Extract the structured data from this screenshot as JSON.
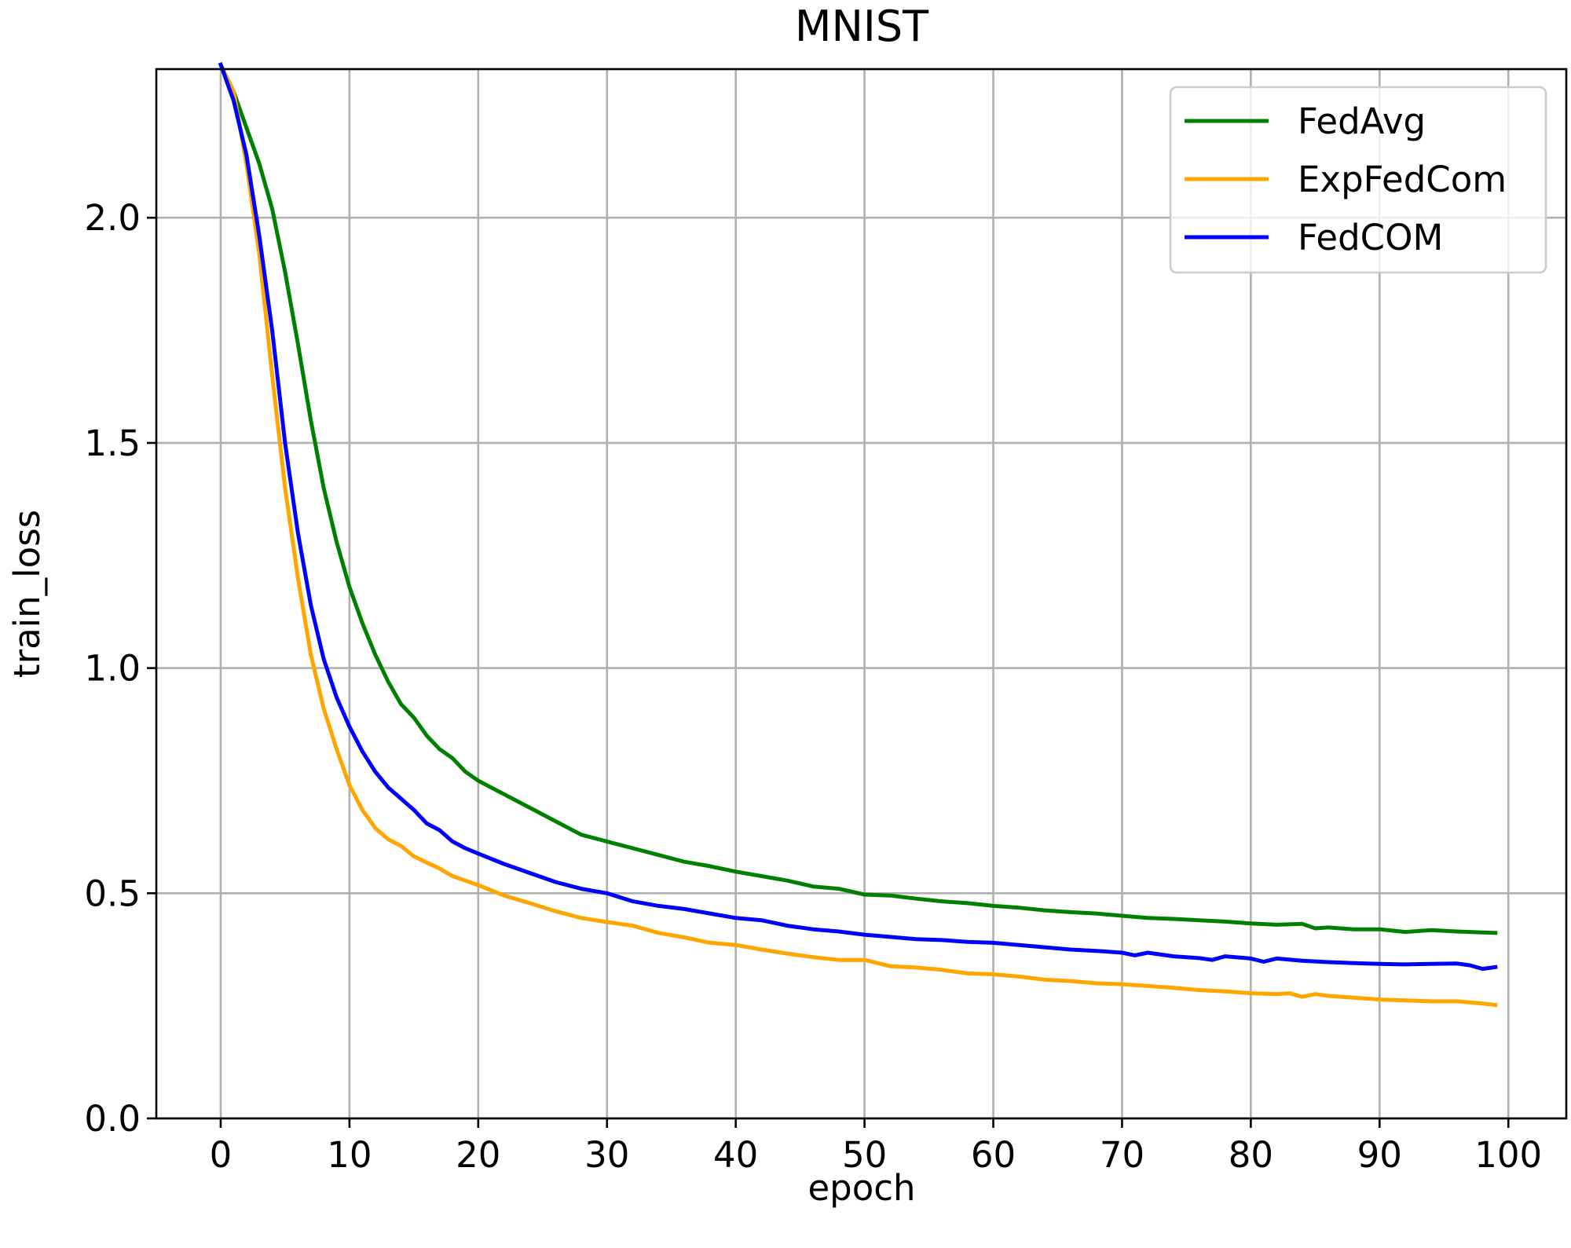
{
  "chart_data": {
    "type": "line",
    "title": "MNIST",
    "xlabel": "epoch",
    "ylabel": "train_loss",
    "xlim": [
      -5,
      104.5
    ],
    "ylim": [
      0,
      2.33
    ],
    "xticks": [
      0,
      10,
      20,
      30,
      40,
      50,
      60,
      70,
      80,
      90,
      100
    ],
    "xtick_labels": [
      "0",
      "10",
      "20",
      "30",
      "40",
      "50",
      "60",
      "70",
      "80",
      "90",
      "100"
    ],
    "yticks": [
      0,
      0.5,
      1.0,
      1.5,
      2.0
    ],
    "ytick_labels": [
      "0.0",
      "0.5",
      "1.0",
      "1.5",
      "2.0"
    ],
    "grid": true,
    "legend_position": "upper-right",
    "series": [
      {
        "name": "FedAvg",
        "color": "#008000",
        "points": [
          [
            0,
            2.34
          ],
          [
            1,
            2.28
          ],
          [
            2,
            2.2
          ],
          [
            3,
            2.12
          ],
          [
            4,
            2.02
          ],
          [
            5,
            1.88
          ],
          [
            6,
            1.72
          ],
          [
            7,
            1.55
          ],
          [
            8,
            1.4
          ],
          [
            9,
            1.28
          ],
          [
            10,
            1.18
          ],
          [
            11,
            1.1
          ],
          [
            12,
            1.03
          ],
          [
            13,
            0.97
          ],
          [
            14,
            0.92
          ],
          [
            15,
            0.89
          ],
          [
            16,
            0.85
          ],
          [
            17,
            0.82
          ],
          [
            18,
            0.8
          ],
          [
            19,
            0.77
          ],
          [
            20,
            0.75
          ],
          [
            22,
            0.72
          ],
          [
            24,
            0.69
          ],
          [
            26,
            0.66
          ],
          [
            28,
            0.63
          ],
          [
            30,
            0.615
          ],
          [
            32,
            0.6
          ],
          [
            34,
            0.585
          ],
          [
            36,
            0.57
          ],
          [
            38,
            0.56
          ],
          [
            40,
            0.548
          ],
          [
            42,
            0.538
          ],
          [
            44,
            0.528
          ],
          [
            46,
            0.515
          ],
          [
            48,
            0.51
          ],
          [
            50,
            0.497
          ],
          [
            52,
            0.495
          ],
          [
            54,
            0.488
          ],
          [
            56,
            0.482
          ],
          [
            58,
            0.478
          ],
          [
            60,
            0.472
          ],
          [
            62,
            0.468
          ],
          [
            64,
            0.462
          ],
          [
            66,
            0.458
          ],
          [
            68,
            0.455
          ],
          [
            70,
            0.45
          ],
          [
            72,
            0.445
          ],
          [
            74,
            0.443
          ],
          [
            76,
            0.44
          ],
          [
            78,
            0.437
          ],
          [
            80,
            0.433
          ],
          [
            82,
            0.43
          ],
          [
            84,
            0.432
          ],
          [
            85,
            0.422
          ],
          [
            86,
            0.424
          ],
          [
            88,
            0.42
          ],
          [
            90,
            0.42
          ],
          [
            92,
            0.414
          ],
          [
            94,
            0.418
          ],
          [
            96,
            0.415
          ],
          [
            98,
            0.413
          ],
          [
            99,
            0.412
          ]
        ]
      },
      {
        "name": "ExpFedCom",
        "color": "#FFA500",
        "points": [
          [
            0,
            2.34
          ],
          [
            1,
            2.28
          ],
          [
            2,
            2.12
          ],
          [
            3,
            1.92
          ],
          [
            4,
            1.65
          ],
          [
            5,
            1.4
          ],
          [
            6,
            1.2
          ],
          [
            7,
            1.03
          ],
          [
            8,
            0.91
          ],
          [
            9,
            0.82
          ],
          [
            10,
            0.74
          ],
          [
            11,
            0.685
          ],
          [
            12,
            0.645
          ],
          [
            13,
            0.62
          ],
          [
            14,
            0.605
          ],
          [
            15,
            0.582
          ],
          [
            16,
            0.568
          ],
          [
            17,
            0.555
          ],
          [
            18,
            0.538
          ],
          [
            19,
            0.528
          ],
          [
            20,
            0.518
          ],
          [
            22,
            0.495
          ],
          [
            24,
            0.478
          ],
          [
            26,
            0.46
          ],
          [
            28,
            0.445
          ],
          [
            30,
            0.436
          ],
          [
            32,
            0.428
          ],
          [
            34,
            0.412
          ],
          [
            36,
            0.402
          ],
          [
            38,
            0.39
          ],
          [
            40,
            0.385
          ],
          [
            42,
            0.375
          ],
          [
            44,
            0.366
          ],
          [
            46,
            0.358
          ],
          [
            48,
            0.352
          ],
          [
            50,
            0.352
          ],
          [
            52,
            0.338
          ],
          [
            54,
            0.335
          ],
          [
            56,
            0.33
          ],
          [
            58,
            0.322
          ],
          [
            60,
            0.32
          ],
          [
            62,
            0.315
          ],
          [
            64,
            0.308
          ],
          [
            66,
            0.305
          ],
          [
            68,
            0.3
          ],
          [
            70,
            0.298
          ],
          [
            72,
            0.294
          ],
          [
            74,
            0.29
          ],
          [
            76,
            0.285
          ],
          [
            78,
            0.282
          ],
          [
            80,
            0.278
          ],
          [
            82,
            0.276
          ],
          [
            83,
            0.278
          ],
          [
            84,
            0.27
          ],
          [
            85,
            0.276
          ],
          [
            86,
            0.272
          ],
          [
            88,
            0.268
          ],
          [
            90,
            0.264
          ],
          [
            92,
            0.262
          ],
          [
            94,
            0.26
          ],
          [
            96,
            0.26
          ],
          [
            98,
            0.255
          ],
          [
            99,
            0.252
          ]
        ]
      },
      {
        "name": "FedCOM",
        "color": "#0000FF",
        "points": [
          [
            0,
            2.34
          ],
          [
            1,
            2.26
          ],
          [
            2,
            2.14
          ],
          [
            3,
            1.96
          ],
          [
            4,
            1.75
          ],
          [
            5,
            1.5
          ],
          [
            6,
            1.3
          ],
          [
            7,
            1.14
          ],
          [
            8,
            1.02
          ],
          [
            9,
            0.935
          ],
          [
            10,
            0.87
          ],
          [
            11,
            0.815
          ],
          [
            12,
            0.77
          ],
          [
            13,
            0.735
          ],
          [
            14,
            0.71
          ],
          [
            15,
            0.685
          ],
          [
            16,
            0.655
          ],
          [
            17,
            0.64
          ],
          [
            18,
            0.615
          ],
          [
            19,
            0.6
          ],
          [
            20,
            0.588
          ],
          [
            22,
            0.565
          ],
          [
            24,
            0.545
          ],
          [
            26,
            0.525
          ],
          [
            28,
            0.51
          ],
          [
            30,
            0.5
          ],
          [
            32,
            0.482
          ],
          [
            34,
            0.472
          ],
          [
            36,
            0.465
          ],
          [
            38,
            0.455
          ],
          [
            40,
            0.445
          ],
          [
            42,
            0.44
          ],
          [
            44,
            0.428
          ],
          [
            46,
            0.42
          ],
          [
            48,
            0.415
          ],
          [
            50,
            0.408
          ],
          [
            52,
            0.403
          ],
          [
            54,
            0.398
          ],
          [
            56,
            0.396
          ],
          [
            58,
            0.392
          ],
          [
            60,
            0.39
          ],
          [
            62,
            0.385
          ],
          [
            64,
            0.38
          ],
          [
            66,
            0.375
          ],
          [
            68,
            0.372
          ],
          [
            70,
            0.368
          ],
          [
            71,
            0.362
          ],
          [
            72,
            0.368
          ],
          [
            74,
            0.36
          ],
          [
            76,
            0.356
          ],
          [
            77,
            0.352
          ],
          [
            78,
            0.36
          ],
          [
            80,
            0.355
          ],
          [
            81,
            0.348
          ],
          [
            82,
            0.355
          ],
          [
            84,
            0.35
          ],
          [
            86,
            0.347
          ],
          [
            88,
            0.345
          ],
          [
            90,
            0.343
          ],
          [
            92,
            0.342
          ],
          [
            94,
            0.343
          ],
          [
            96,
            0.344
          ],
          [
            97,
            0.34
          ],
          [
            98,
            0.332
          ],
          [
            99,
            0.336
          ]
        ]
      }
    ]
  }
}
